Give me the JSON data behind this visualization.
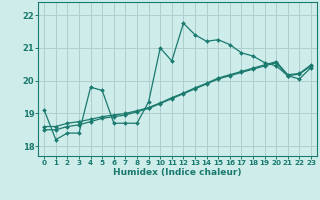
{
  "xlabel": "Humidex (Indice chaleur)",
  "xlim": [
    -0.5,
    23.5
  ],
  "ylim": [
    17.7,
    22.4
  ],
  "yticks": [
    18,
    19,
    20,
    21,
    22
  ],
  "xticks": [
    0,
    1,
    2,
    3,
    4,
    5,
    6,
    7,
    8,
    9,
    10,
    11,
    12,
    13,
    14,
    15,
    16,
    17,
    18,
    19,
    20,
    21,
    22,
    23
  ],
  "bg_color": "#cdecea",
  "grid_color": "#aecfcd",
  "line_color": "#1a7a6e",
  "line1": [
    19.1,
    18.2,
    18.4,
    18.4,
    19.8,
    19.7,
    18.7,
    18.7,
    18.7,
    19.35,
    21.0,
    20.6,
    21.75,
    21.4,
    21.2,
    21.25,
    21.1,
    20.85,
    20.75,
    20.55,
    20.45,
    20.15,
    20.05,
    20.4
  ],
  "line2": [
    18.5,
    18.5,
    18.6,
    18.65,
    18.75,
    18.85,
    18.9,
    18.95,
    19.05,
    19.15,
    19.3,
    19.45,
    19.6,
    19.75,
    19.9,
    20.05,
    20.15,
    20.25,
    20.35,
    20.45,
    20.55,
    20.15,
    20.2,
    20.45
  ],
  "line3": [
    18.6,
    18.6,
    18.7,
    18.75,
    18.82,
    18.9,
    18.95,
    19.0,
    19.08,
    19.18,
    19.32,
    19.48,
    19.62,
    19.78,
    19.92,
    20.08,
    20.18,
    20.28,
    20.38,
    20.48,
    20.58,
    20.18,
    20.22,
    20.48
  ]
}
